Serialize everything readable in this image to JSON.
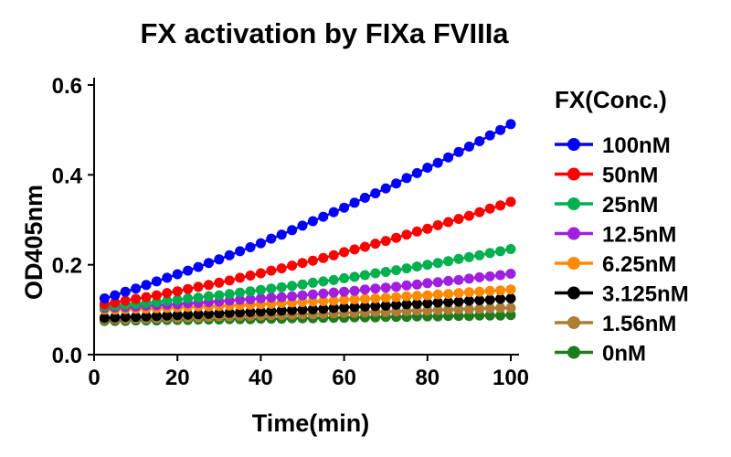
{
  "figure": {
    "background_color": "#FFFFFF",
    "text_color": "#000000"
  },
  "chart_data": {
    "type": "line",
    "title": "FX activation by FIXa FVIIIa",
    "xlabel": "Time(min)",
    "ylabel": "OD405nm",
    "xlim": [
      0,
      102
    ],
    "ylim": [
      0,
      0.6
    ],
    "xticks": [
      0,
      20,
      40,
      60,
      80,
      100
    ],
    "xtick_labels": [
      "0",
      "20",
      "40",
      "60",
      "80",
      "100"
    ],
    "yticks": [
      0,
      0.2,
      0.4,
      0.6
    ],
    "ytick_labels": [
      "0.0",
      "0.2",
      "0.4",
      "0.6"
    ],
    "grid": "off",
    "marker": "filled-circle",
    "legend": {
      "title": "FX(Conc.)",
      "position": "right"
    },
    "x": [
      2.5,
      5,
      7.5,
      10,
      12.5,
      15,
      17.5,
      20,
      22.5,
      25,
      27.5,
      30,
      32.5,
      35,
      37.5,
      40,
      42.5,
      45,
      47.5,
      50,
      52.5,
      55,
      57.5,
      60,
      62.5,
      65,
      67.5,
      70,
      72.5,
      75,
      77.5,
      80,
      82.5,
      85,
      87.5,
      90,
      92.5,
      95,
      97.5,
      100
    ],
    "series": [
      {
        "name": "100nM",
        "color": "#0000FF",
        "values": [
          0.125,
          0.132,
          0.14,
          0.147,
          0.155,
          0.163,
          0.171,
          0.179,
          0.187,
          0.195,
          0.204,
          0.212,
          0.221,
          0.23,
          0.239,
          0.248,
          0.258,
          0.267,
          0.277,
          0.287,
          0.297,
          0.307,
          0.317,
          0.327,
          0.338,
          0.349,
          0.359,
          0.37,
          0.381,
          0.393,
          0.404,
          0.416,
          0.427,
          0.439,
          0.451,
          0.463,
          0.475,
          0.488,
          0.5,
          0.513
        ]
      },
      {
        "name": "50nM",
        "color": "#FF0000",
        "values": [
          0.112,
          0.116,
          0.12,
          0.124,
          0.128,
          0.132,
          0.137,
          0.141,
          0.146,
          0.151,
          0.155,
          0.16,
          0.165,
          0.171,
          0.176,
          0.181,
          0.187,
          0.192,
          0.198,
          0.204,
          0.209,
          0.215,
          0.221,
          0.228,
          0.234,
          0.24,
          0.247,
          0.253,
          0.26,
          0.267,
          0.274,
          0.28,
          0.288,
          0.295,
          0.302,
          0.309,
          0.317,
          0.325,
          0.332,
          0.34
        ]
      },
      {
        "name": "25nM",
        "color": "#00B04F",
        "values": [
          0.107,
          0.109,
          0.111,
          0.113,
          0.115,
          0.117,
          0.12,
          0.122,
          0.125,
          0.127,
          0.13,
          0.132,
          0.135,
          0.138,
          0.141,
          0.144,
          0.147,
          0.15,
          0.153,
          0.156,
          0.16,
          0.163,
          0.166,
          0.17,
          0.173,
          0.177,
          0.181,
          0.184,
          0.188,
          0.192,
          0.196,
          0.2,
          0.204,
          0.208,
          0.213,
          0.217,
          0.221,
          0.226,
          0.23,
          0.235
        ]
      },
      {
        "name": "12.5nM",
        "color": "#A020E0",
        "values": [
          0.104,
          0.105,
          0.106,
          0.107,
          0.109,
          0.11,
          0.111,
          0.112,
          0.114,
          0.115,
          0.117,
          0.118,
          0.12,
          0.122,
          0.123,
          0.125,
          0.127,
          0.128,
          0.13,
          0.132,
          0.134,
          0.136,
          0.138,
          0.14,
          0.142,
          0.145,
          0.147,
          0.149,
          0.151,
          0.154,
          0.156,
          0.159,
          0.161,
          0.164,
          0.166,
          0.169,
          0.172,
          0.174,
          0.177,
          0.18
        ]
      },
      {
        "name": "6.25nM",
        "color": "#FF8A00",
        "values": [
          0.1,
          0.1,
          0.101,
          0.102,
          0.102,
          0.103,
          0.104,
          0.105,
          0.106,
          0.107,
          0.107,
          0.108,
          0.109,
          0.11,
          0.111,
          0.112,
          0.113,
          0.115,
          0.116,
          0.117,
          0.118,
          0.119,
          0.12,
          0.122,
          0.123,
          0.124,
          0.125,
          0.127,
          0.128,
          0.13,
          0.131,
          0.132,
          0.134,
          0.135,
          0.137,
          0.139,
          0.14,
          0.142,
          0.143,
          0.145
        ]
      },
      {
        "name": "3.125nM",
        "color": "#000000",
        "values": [
          0.082,
          0.083,
          0.084,
          0.084,
          0.085,
          0.086,
          0.087,
          0.088,
          0.089,
          0.09,
          0.091,
          0.092,
          0.093,
          0.094,
          0.095,
          0.096,
          0.097,
          0.098,
          0.099,
          0.1,
          0.101,
          0.102,
          0.104,
          0.105,
          0.106,
          0.107,
          0.108,
          0.109,
          0.111,
          0.112,
          0.113,
          0.114,
          0.116,
          0.117,
          0.118,
          0.12,
          0.121,
          0.122,
          0.124,
          0.125
        ]
      },
      {
        "name": "1.56nM",
        "color": "#AD7D35",
        "values": [
          0.078,
          0.079,
          0.079,
          0.08,
          0.08,
          0.081,
          0.082,
          0.082,
          0.083,
          0.083,
          0.084,
          0.085,
          0.085,
          0.086,
          0.086,
          0.087,
          0.088,
          0.088,
          0.089,
          0.09,
          0.09,
          0.091,
          0.092,
          0.093,
          0.093,
          0.094,
          0.095,
          0.095,
          0.096,
          0.097,
          0.098,
          0.098,
          0.099,
          0.1,
          0.101,
          0.101,
          0.102,
          0.103,
          0.104,
          0.104
        ]
      },
      {
        "name": "0nM",
        "color": "#1E7B1E",
        "values": [
          0.075,
          0.075,
          0.075,
          0.076,
          0.076,
          0.076,
          0.077,
          0.077,
          0.077,
          0.078,
          0.078,
          0.078,
          0.079,
          0.079,
          0.079,
          0.08,
          0.08,
          0.08,
          0.081,
          0.081,
          0.081,
          0.082,
          0.082,
          0.082,
          0.083,
          0.083,
          0.083,
          0.084,
          0.084,
          0.084,
          0.085,
          0.085,
          0.085,
          0.086,
          0.086,
          0.086,
          0.087,
          0.087,
          0.087,
          0.088
        ]
      }
    ]
  }
}
